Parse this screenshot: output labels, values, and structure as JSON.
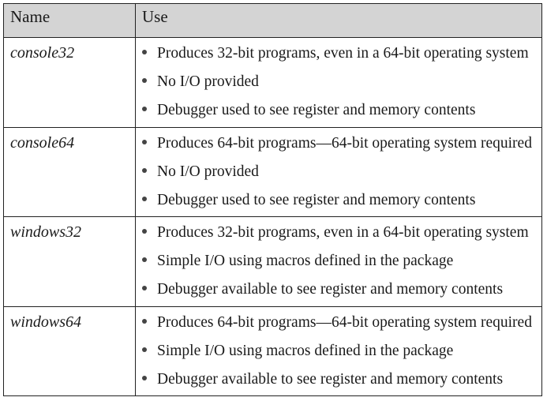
{
  "table": {
    "headers": {
      "name": "Name",
      "use": "Use"
    },
    "rows": [
      {
        "name": "console32",
        "uses": [
          "Produces 32-bit programs, even in a 64-bit operating system",
          "No I/O provided",
          "Debugger used to see register and memory contents"
        ]
      },
      {
        "name": "console64",
        "uses": [
          "Produces 64-bit programs—64-bit operating system required",
          "No I/O provided",
          "Debugger used to see register and memory contents"
        ]
      },
      {
        "name": "windows32",
        "uses": [
          "Produces 32-bit programs, even in a 64-bit operating system",
          "Simple I/O using macros defined in the package",
          "Debugger available to see register and memory contents"
        ]
      },
      {
        "name": "windows64",
        "uses": [
          "Produces 64-bit programs—64-bit operating system required",
          "Simple I/O using macros defined in the package",
          "Debugger available to see register and memory contents"
        ]
      }
    ]
  }
}
